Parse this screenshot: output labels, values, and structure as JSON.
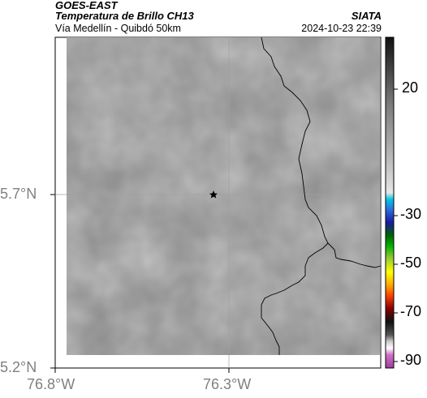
{
  "header": {
    "satellite": "GOES-EAST",
    "product": "Temperatura de Brillo CH13",
    "region": "Vía Medellín - Quibdó 50km",
    "source": "SIATA",
    "datetime": "2024-10-23 22:39"
  },
  "axes": {
    "lat_labels": [
      "5.7°N",
      "5.2°N"
    ],
    "lon_labels": [
      "76.8°W",
      "76.3°W"
    ]
  },
  "colorbar": {
    "labels": [
      "20",
      "-30",
      "-50",
      "-70",
      "-90"
    ]
  },
  "map": {
    "marker_icon": "star-icon",
    "background_color": "#8a8a8a"
  }
}
